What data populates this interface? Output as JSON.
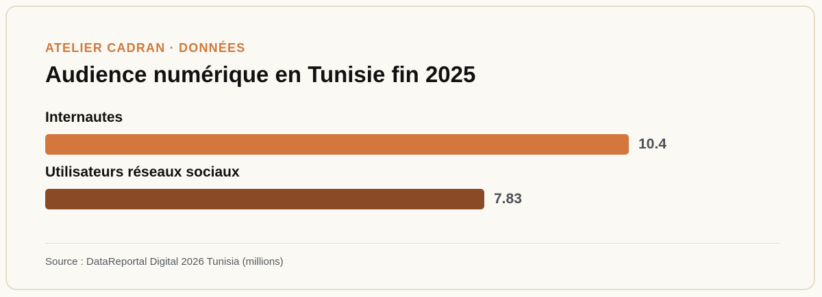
{
  "header": {
    "eyebrow": "ATELIER CADRAN · DONNÉES",
    "title": "Audience numérique en Tunisie fin 2025"
  },
  "footer": {
    "source": "Source : DataReportal Digital 2026 Tunisia (millions)"
  },
  "colors": {
    "accent": "#d2783c",
    "bar_primary": "#d4773c",
    "bar_secondary": "#8b4a26"
  },
  "chart_data": {
    "type": "bar",
    "orientation": "horizontal",
    "title": "Audience numérique en Tunisie fin 2025",
    "categories": [
      "Internautes",
      "Utilisateurs réseaux sociaux"
    ],
    "values": [
      10.4,
      7.83
    ],
    "value_labels": [
      "10.4",
      "7.83"
    ],
    "unit": "millions",
    "bar_colors": [
      "#d4773c",
      "#8b4a26"
    ],
    "grid": false,
    "legend": "none"
  }
}
